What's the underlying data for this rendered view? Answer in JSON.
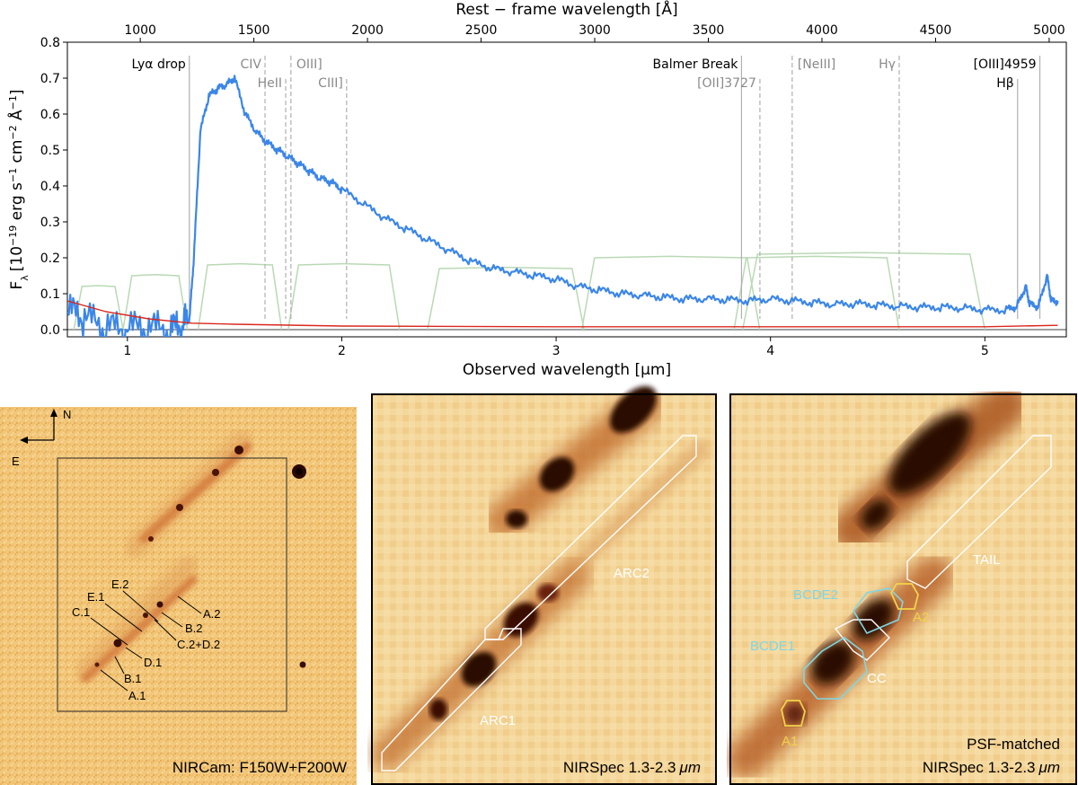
{
  "chart_data": {
    "type": "line",
    "xlabel": "Observed wavelength [μm]",
    "x2label": "Rest − frame wavelength [Å]",
    "ylabel": "F",
    "ylabel_sub": "λ",
    "ylabel_units": "[10",
    "ylabel_exp1": "−19",
    "ylabel_mid1": " erg s",
    "ylabel_exp2": "−1",
    "ylabel_mid2": " cm",
    "ylabel_exp3": "−2",
    "ylabel_mid3": " Å",
    "ylabel_exp4": "−1",
    "ylabel_end": "]",
    "xlim": [
      0.72,
      5.38
    ],
    "ylim": [
      -0.02,
      0.8
    ],
    "xticks": [
      1,
      2,
      3,
      4,
      5
    ],
    "yticks": [
      0.0,
      0.1,
      0.2,
      0.3,
      0.4,
      0.5,
      0.6,
      0.7,
      0.8
    ],
    "ytick_labels": [
      "0.0",
      "0.1",
      "0.2",
      "0.3",
      "0.4",
      "0.5",
      "0.6",
      "0.7",
      "0.8"
    ],
    "x2_ticks": [
      1000,
      1500,
      2000,
      2500,
      3000,
      3500,
      4000,
      4500,
      5000
    ],
    "redshift_factor": 10.6,
    "series": [
      {
        "role": "spectrum",
        "color": "#3b86e8",
        "x": [
          0.72,
          0.8,
          0.9,
          1.0,
          1.1,
          1.2,
          1.26,
          1.29,
          1.31,
          1.34,
          1.38,
          1.42,
          1.46,
          1.5,
          1.55,
          1.6,
          1.65,
          1.7,
          1.75,
          1.8,
          1.85,
          1.9,
          1.95,
          2.0,
          2.1,
          2.2,
          2.3,
          2.4,
          2.5,
          2.6,
          2.7,
          2.8,
          2.9,
          3.0,
          3.1,
          3.2,
          3.3,
          3.4,
          3.5,
          3.6,
          3.7,
          3.8,
          3.9,
          4.0,
          4.1,
          4.2,
          4.3,
          4.4,
          4.5,
          4.6,
          4.7,
          4.8,
          4.9,
          5.0,
          5.1,
          5.15,
          5.19,
          5.21,
          5.25,
          5.29,
          5.31,
          5.34
        ],
        "y": [
          0.05,
          0.03,
          0.0,
          0.0,
          0.0,
          -0.005,
          0.01,
          0.03,
          0.2,
          0.55,
          0.65,
          0.67,
          0.68,
          0.7,
          0.6,
          0.55,
          0.52,
          0.5,
          0.48,
          0.46,
          0.44,
          0.42,
          0.41,
          0.39,
          0.35,
          0.31,
          0.28,
          0.25,
          0.22,
          0.19,
          0.17,
          0.16,
          0.15,
          0.14,
          0.12,
          0.11,
          0.1,
          0.095,
          0.09,
          0.085,
          0.085,
          0.083,
          0.08,
          0.085,
          0.08,
          0.075,
          0.07,
          0.072,
          0.068,
          0.065,
          0.062,
          0.062,
          0.06,
          0.055,
          0.055,
          0.065,
          0.12,
          0.07,
          0.065,
          0.15,
          0.08,
          0.08
        ]
      },
      {
        "role": "error",
        "color": "#d9281e",
        "x": [
          0.72,
          0.9,
          1.1,
          1.3,
          1.5,
          2.0,
          3.0,
          4.0,
          5.0,
          5.34
        ],
        "y": [
          0.08,
          0.05,
          0.03,
          0.018,
          0.015,
          0.01,
          0.008,
          0.008,
          0.008,
          0.012
        ]
      }
    ],
    "filters": [
      {
        "lo": 0.75,
        "hi": 0.98,
        "level": 0.12
      },
      {
        "lo": 0.98,
        "hi": 1.28,
        "level": 0.15
      },
      {
        "lo": 1.33,
        "hi": 1.72,
        "level": 0.18
      },
      {
        "lo": 1.75,
        "hi": 2.27,
        "level": 0.18
      },
      {
        "lo": 2.4,
        "hi": 3.13,
        "level": 0.17
      },
      {
        "lo": 3.12,
        "hi": 3.95,
        "level": 0.2
      },
      {
        "lo": 3.83,
        "hi": 4.6,
        "level": 0.2
      },
      {
        "lo": 3.87,
        "hi": 5.0,
        "level": 0.21
      }
    ],
    "lines": [
      {
        "label": "Lyα drop",
        "rest": 1216,
        "style": "solid",
        "color": "#000000",
        "row": 0,
        "label_side": "left"
      },
      {
        "label": "CIV",
        "rest": 1549,
        "style": "dashed",
        "color": "#8a8a8a",
        "row": 0,
        "label_side": "left"
      },
      {
        "label": "HeII",
        "rest": 1640,
        "style": "dashed",
        "color": "#8a8a8a",
        "row": 1,
        "label_side": "left"
      },
      {
        "label": "OIII]",
        "rest": 1663,
        "style": "dashed",
        "color": "#8a8a8a",
        "row": 0,
        "label_side": "right"
      },
      {
        "label": "CIII]",
        "rest": 1908,
        "style": "dashed",
        "color": "#8a8a8a",
        "row": 1,
        "label_side": "left"
      },
      {
        "label": "Balmer Break",
        "rest": 3646,
        "style": "solid",
        "color": "#000000",
        "row": 0,
        "label_side": "left"
      },
      {
        "label": "[OII]3727",
        "rest": 3727,
        "style": "dashed",
        "color": "#8a8a8a",
        "row": 1,
        "label_side": "left"
      },
      {
        "label": "[NeIII]",
        "rest": 3869,
        "style": "dashed",
        "color": "#8a8a8a",
        "row": 0,
        "label_side": "right"
      },
      {
        "label": "Hγ",
        "rest": 4340,
        "style": "dashed",
        "color": "#8a8a8a",
        "row": 0,
        "label_side": "left"
      },
      {
        "label": "[OIII]4959",
        "rest": 4959,
        "style": "solid",
        "color": "#000000",
        "row": 0,
        "label_side": "left"
      },
      {
        "label": "Hβ",
        "rest": 4861,
        "style": "solid",
        "color": "#000000",
        "row": 1,
        "label_side": "left"
      }
    ]
  },
  "panels": {
    "nircam": {
      "caption": "NIRCam: F150W+F200W",
      "compass_n": "N",
      "compass_e": "E",
      "labels": [
        "E.2",
        "E.1",
        "C.1",
        "A.2",
        "B.2",
        "C.2+D.2",
        "D.1",
        "B.1",
        "A.1"
      ]
    },
    "nirspec": {
      "caption": "NIRSpec 1.3-2.3",
      "caption_unit": "μm",
      "regions": [
        "ARC2",
        "ARC1"
      ]
    },
    "psf": {
      "caption1": "PSF-matched",
      "caption2": "NIRSpec 1.3-2.3",
      "caption_unit": "μm",
      "regions": [
        {
          "label": "TAIL",
          "color": "#ffffff"
        },
        {
          "label": "BCDE2",
          "color": "#7fd6e6"
        },
        {
          "label": "A2",
          "color": "#f2d34a"
        },
        {
          "label": "BCDE1",
          "color": "#7fd6e6"
        },
        {
          "label": "CC",
          "color": "#ffffff"
        },
        {
          "label": "A1",
          "color": "#f2d34a"
        }
      ]
    }
  },
  "colors": {
    "spectrum": "#3b86e8",
    "error": "#d9281e",
    "filters": "#b9d9b4",
    "image_bg": "#f1c77e",
    "image_dark": "#2a0904"
  }
}
